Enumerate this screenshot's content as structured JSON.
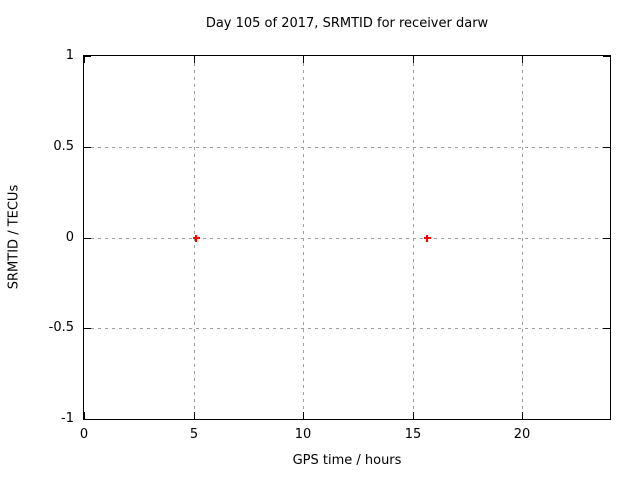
{
  "window": {
    "background": "#ffffff"
  },
  "chart_data": {
    "type": "scatter",
    "title": "Day 105 of 2017, SRMTID for receiver darw",
    "xlabel": "GPS time / hours",
    "ylabel": "SRMTID / TECUs",
    "xlim": [
      0,
      24
    ],
    "ylim": [
      -1,
      1
    ],
    "grid": true,
    "legend": "none",
    "border_color": "#000000",
    "grid_color": "#9e9e9e",
    "text_color": "#000000",
    "xticks": [
      {
        "v": 0,
        "label": "0"
      },
      {
        "v": 5,
        "label": "5"
      },
      {
        "v": 10,
        "label": "10"
      },
      {
        "v": 15,
        "label": "15"
      },
      {
        "v": 20,
        "label": "20"
      }
    ],
    "yticks": [
      {
        "v": -1,
        "label": "-1"
      },
      {
        "v": -0.5,
        "label": "-0.5"
      },
      {
        "v": 0,
        "label": "0"
      },
      {
        "v": 0.5,
        "label": "0.5"
      },
      {
        "v": 1,
        "label": "1"
      }
    ],
    "series": [
      {
        "name": "SRMTID",
        "marker": "plus",
        "color": "#ff0000",
        "points": [
          {
            "x": 5.1,
            "y": 0.0
          },
          {
            "x": 15.65,
            "y": 0.0
          }
        ]
      }
    ]
  }
}
